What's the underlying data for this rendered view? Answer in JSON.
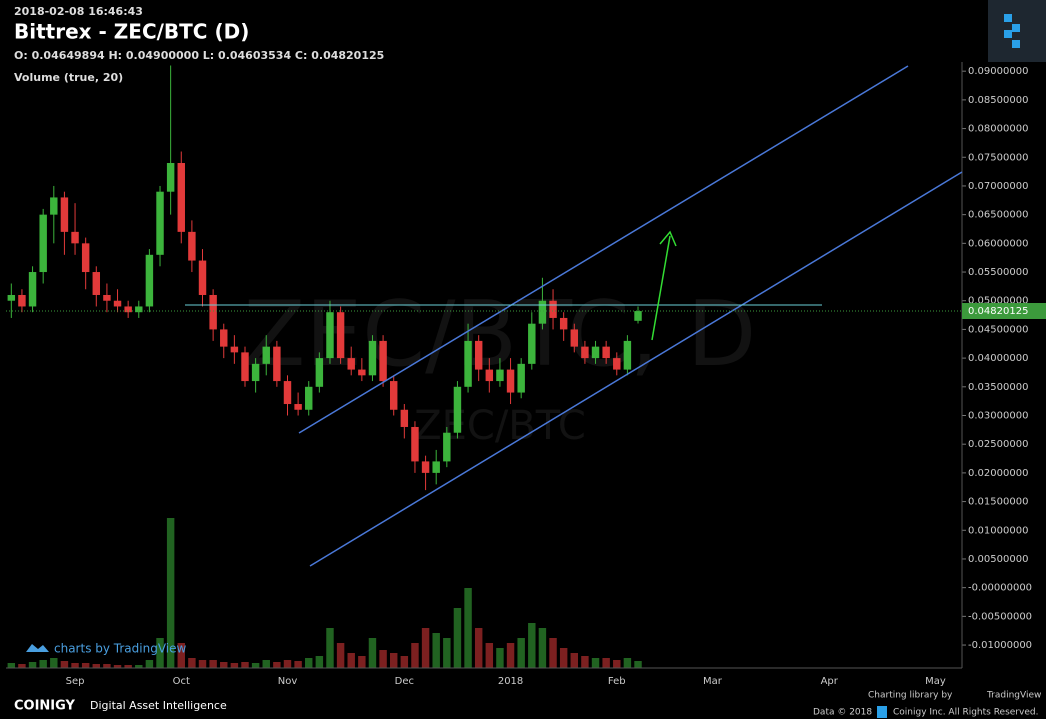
{
  "chart_data": {
    "type": "candlestick",
    "timestamp": "2018-02-08 16:46:43",
    "title": "Bittrex - ZEC/BTC (D)",
    "ohlc_text": "O: 0.04649894 H: 0.04900000 L: 0.04603534 C: 0.04820125",
    "volume_label": "Volume (true, 20)",
    "watermark": "ZEC/BTC, D",
    "watermark_small": "ZEC/BTC",
    "up_color": "#3cb43c",
    "down_color": "#e23a3a",
    "grid": false,
    "categories": [
      null,
      null,
      null,
      null,
      null,
      null,
      "Sep",
      null,
      null,
      null,
      null,
      null,
      null,
      null,
      null,
      null,
      "Oct",
      null,
      null,
      null,
      null,
      null,
      null,
      null,
      null,
      null,
      "Nov",
      null,
      null,
      null,
      null,
      null,
      null,
      null,
      null,
      null,
      null,
      "Dec",
      null,
      null,
      null,
      null,
      null,
      null,
      null,
      null,
      null,
      "2018",
      null,
      null,
      null,
      null,
      null,
      null,
      null,
      null,
      null,
      "Feb",
      null,
      null,
      null,
      null,
      null,
      null,
      null,
      null,
      "Mar",
      null,
      null,
      null,
      null,
      null,
      null,
      null,
      null,
      null,
      null,
      "Apr",
      null,
      null,
      null,
      null,
      null,
      null,
      null,
      null,
      null,
      "May",
      null,
      null
    ],
    "open": [
      0.05,
      0.051,
      0.049,
      0.055,
      0.065,
      0.068,
      0.062,
      0.06,
      0.055,
      0.051,
      0.05,
      0.049,
      0.048,
      0.049,
      0.058,
      0.069,
      0.074,
      0.062,
      0.057,
      0.051,
      0.045,
      0.042,
      0.041,
      0.036,
      0.039,
      0.042,
      0.036,
      0.032,
      0.031,
      0.035,
      0.04,
      0.048,
      0.04,
      0.038,
      0.037,
      0.043,
      0.036,
      0.031,
      0.028,
      0.022,
      0.02,
      0.022,
      0.027,
      0.035,
      0.043,
      0.038,
      0.036,
      0.038,
      0.034,
      0.039,
      0.046,
      0.05,
      0.047,
      0.045,
      0.042,
      0.04,
      0.042,
      0.04,
      0.038,
      0.04649894,
      null,
      null,
      null,
      null,
      null,
      null,
      null,
      null,
      null,
      null,
      null,
      null,
      null,
      null,
      null,
      null,
      null,
      null,
      null,
      null,
      null,
      null,
      null,
      null,
      null,
      null,
      null,
      null,
      null,
      null
    ],
    "high": [
      0.053,
      0.052,
      0.056,
      0.066,
      0.07,
      0.069,
      0.067,
      0.061,
      0.056,
      0.053,
      0.052,
      0.05,
      0.05,
      0.059,
      0.07,
      0.091,
      0.076,
      0.064,
      0.059,
      0.052,
      0.046,
      0.044,
      0.042,
      0.04,
      0.044,
      0.043,
      0.037,
      0.034,
      0.036,
      0.041,
      0.05,
      0.049,
      0.042,
      0.04,
      0.044,
      0.044,
      0.037,
      0.032,
      0.029,
      0.023,
      0.024,
      0.028,
      0.036,
      0.046,
      0.044,
      0.04,
      0.04,
      0.04,
      0.04,
      0.048,
      0.054,
      0.052,
      0.048,
      0.046,
      0.043,
      0.043,
      0.043,
      0.041,
      0.044,
      0.049,
      null,
      null,
      null,
      null,
      null,
      null,
      null,
      null,
      null,
      null,
      null,
      null,
      null,
      null,
      null,
      null,
      null,
      null,
      null,
      null,
      null,
      null,
      null,
      null,
      null,
      null,
      null,
      null,
      null,
      null
    ],
    "low": [
      0.047,
      0.048,
      0.048,
      0.053,
      0.06,
      0.058,
      0.058,
      0.052,
      0.049,
      0.048,
      0.048,
      0.047,
      0.047,
      0.048,
      0.056,
      0.065,
      0.06,
      0.055,
      0.049,
      0.043,
      0.04,
      0.039,
      0.035,
      0.034,
      0.037,
      0.035,
      0.03,
      0.03,
      0.03,
      0.034,
      0.039,
      0.039,
      0.037,
      0.036,
      0.036,
      0.035,
      0.03,
      0.026,
      0.02,
      0.017,
      0.018,
      0.021,
      0.026,
      0.034,
      0.036,
      0.034,
      0.035,
      0.032,
      0.033,
      0.038,
      0.045,
      0.045,
      0.043,
      0.041,
      0.039,
      0.039,
      0.039,
      0.037,
      0.037,
      0.04603534,
      null,
      null,
      null,
      null,
      null,
      null,
      null,
      null,
      null,
      null,
      null,
      null,
      null,
      null,
      null,
      null,
      null,
      null,
      null,
      null,
      null,
      null,
      null,
      null,
      null,
      null,
      null,
      null,
      null,
      null
    ],
    "close": [
      0.051,
      0.049,
      0.055,
      0.065,
      0.068,
      0.062,
      0.06,
      0.055,
      0.051,
      0.05,
      0.049,
      0.048,
      0.049,
      0.058,
      0.069,
      0.074,
      0.062,
      0.057,
      0.051,
      0.045,
      0.042,
      0.041,
      0.036,
      0.039,
      0.042,
      0.036,
      0.032,
      0.031,
      0.035,
      0.04,
      0.048,
      0.04,
      0.038,
      0.037,
      0.043,
      0.036,
      0.031,
      0.028,
      0.022,
      0.02,
      0.022,
      0.027,
      0.035,
      0.043,
      0.038,
      0.036,
      0.038,
      0.034,
      0.039,
      0.046,
      0.05,
      0.047,
      0.045,
      0.042,
      0.04,
      0.042,
      0.04,
      0.038,
      0.043,
      0.04820125,
      null,
      null,
      null,
      null,
      null,
      null,
      null,
      null,
      null,
      null,
      null,
      null,
      null,
      null,
      null,
      null,
      null,
      null,
      null,
      null,
      null,
      null,
      null,
      null,
      null,
      null,
      null,
      null,
      null,
      null
    ],
    "volume": [
      5,
      4,
      6,
      8,
      10,
      7,
      5,
      5,
      4,
      4,
      3,
      3,
      3,
      8,
      30,
      150,
      25,
      10,
      8,
      8,
      6,
      5,
      6,
      5,
      8,
      6,
      8,
      7,
      10,
      12,
      40,
      25,
      15,
      12,
      30,
      18,
      15,
      12,
      25,
      40,
      35,
      30,
      60,
      80,
      40,
      25,
      20,
      25,
      30,
      45,
      40,
      30,
      20,
      15,
      12,
      10,
      10,
      8,
      10,
      7,
      null,
      null,
      null,
      null,
      null,
      null,
      null,
      null,
      null,
      null,
      null,
      null,
      null,
      null,
      null,
      null,
      null,
      null,
      null,
      null,
      null,
      null,
      null,
      null,
      null,
      null,
      null,
      null,
      null,
      null
    ],
    "ylim": [
      -0.014,
      0.0916
    ],
    "yticks": [
      {
        "value": 0.09,
        "label": "0.09000000"
      },
      {
        "value": 0.085,
        "label": "0.08500000"
      },
      {
        "value": 0.08,
        "label": "0.08000000"
      },
      {
        "value": 0.075,
        "label": "0.07500000"
      },
      {
        "value": 0.07,
        "label": "0.07000000"
      },
      {
        "value": 0.065,
        "label": "0.06500000"
      },
      {
        "value": 0.06,
        "label": "0.06000000"
      },
      {
        "value": 0.055,
        "label": "0.05500000"
      },
      {
        "value": 0.05,
        "label": "0.05000000"
      },
      {
        "value": 0.045,
        "label": "0.04500000"
      },
      {
        "value": 0.04,
        "label": "0.04000000"
      },
      {
        "value": 0.035,
        "label": "0.03500000"
      },
      {
        "value": 0.03,
        "label": "0.03000000"
      },
      {
        "value": 0.025,
        "label": "0.02500000"
      },
      {
        "value": 0.02,
        "label": "0.02000000"
      },
      {
        "value": 0.015,
        "label": "0.01500000"
      },
      {
        "value": 0.01,
        "label": "0.01000000"
      },
      {
        "value": 0.005,
        "label": "0.00500000"
      },
      {
        "value": 0,
        "label": "-0.00000000"
      },
      {
        "value": -0.005,
        "label": "-0.00500000"
      },
      {
        "value": -0.01,
        "label": "-0.01000000"
      }
    ],
    "branding": {
      "charts_by": "charts by TradingView",
      "coinigy": "COINIGY",
      "tagline": "Digital Asset Intelligence",
      "charting_library": "Charting library by",
      "tradingview": "TradingView",
      "data_copyright": "Data © 2018",
      "rights": "Coinigy Inc. All Rights Reserved."
    }
  }
}
